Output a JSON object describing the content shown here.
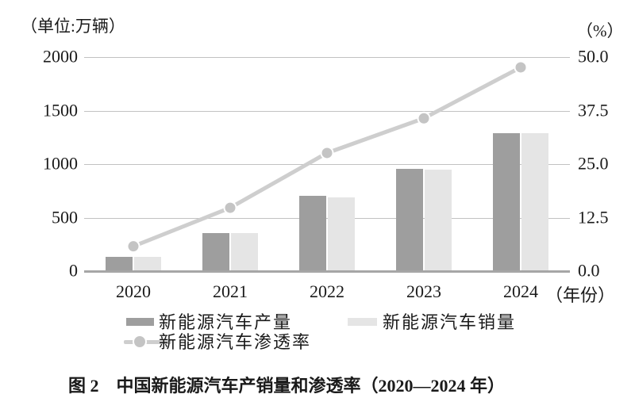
{
  "figure": {
    "caption": "图 2　中国新能源汽车产销量和渗透率（2020—2024 年）"
  },
  "chart_data": {
    "type": "bar",
    "subtype": "grouped-bars-with-line",
    "categories": [
      "2020",
      "2021",
      "2022",
      "2023",
      "2024"
    ],
    "x_axis_suffix": "（年份）",
    "series": [
      {
        "name": "新能源汽车产量",
        "type": "bar",
        "axis": "left",
        "values": [
          137,
          354,
          706,
          959,
          1289
        ],
        "color": "#9e9e9e"
      },
      {
        "name": "新能源汽车销量",
        "type": "bar",
        "axis": "left",
        "values": [
          137,
          352,
          689,
          950,
          1287
        ],
        "color": "#e5e5e5"
      },
      {
        "name": "新能源汽车渗透率",
        "type": "line",
        "axis": "right",
        "values": [
          5.8,
          14.8,
          27.6,
          35.7,
          47.6
        ],
        "color": "#cecece",
        "marker_color": "#c4c4c4"
      }
    ],
    "left_axis": {
      "unit_label": "（单位:万辆）",
      "ticks": [
        "2000",
        "1500",
        "1000",
        "500",
        "0"
      ],
      "tick_values": [
        2000,
        1500,
        1000,
        500,
        0
      ],
      "range": [
        0,
        2000
      ]
    },
    "right_axis": {
      "unit_label": "（%）",
      "ticks": [
        "50.0",
        "37.5",
        "25.0",
        "12.5",
        "0.0"
      ],
      "tick_values": [
        50,
        37.5,
        25,
        12.5,
        0
      ],
      "range": [
        0,
        50
      ]
    },
    "grid": true,
    "grid_color": "#c2c2c2",
    "baseline_color": "#a6a6a6",
    "legend_position": "bottom",
    "title": "图 2　中国新能源汽车产销量和渗透率（2020—2024 年）"
  }
}
